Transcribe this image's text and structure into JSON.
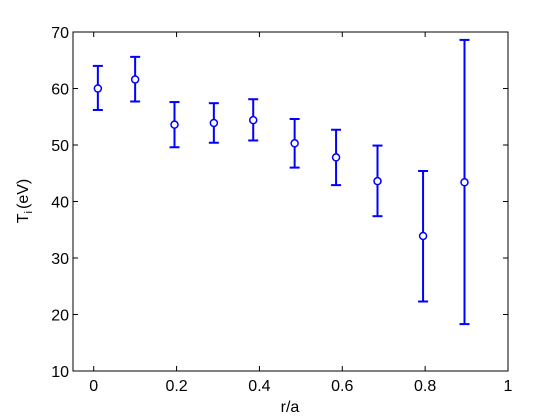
{
  "chart_data": {
    "type": "scatter",
    "title": "",
    "xlabel": "r/a",
    "ylabel": {
      "main": "T",
      "sub": "i",
      "unit": "(eV)"
    },
    "xlim": [
      -0.05,
      1
    ],
    "ylim": [
      10,
      70
    ],
    "xticks": [
      0,
      0.2,
      0.4,
      0.6,
      0.8,
      1
    ],
    "xtick_labels": [
      "0",
      "0.2",
      "0.4",
      "0.6",
      "0.8",
      "1"
    ],
    "yticks": [
      10,
      20,
      30,
      40,
      50,
      60,
      70
    ],
    "ytick_labels": [
      "10",
      "20",
      "30",
      "40",
      "50",
      "60",
      "70"
    ],
    "grid": false,
    "marker": "circle",
    "color": "#0000ff",
    "series": [
      {
        "points": [
          {
            "x": 0.01,
            "y": 60.0,
            "ylow": 56.2,
            "yhigh": 64.0
          },
          {
            "x": 0.1,
            "y": 61.6,
            "ylow": 57.7,
            "yhigh": 65.6
          },
          {
            "x": 0.195,
            "y": 53.6,
            "ylow": 49.6,
            "yhigh": 57.6
          },
          {
            "x": 0.29,
            "y": 53.9,
            "ylow": 50.4,
            "yhigh": 57.4
          },
          {
            "x": 0.385,
            "y": 54.4,
            "ylow": 50.8,
            "yhigh": 58.1
          },
          {
            "x": 0.485,
            "y": 50.3,
            "ylow": 46.0,
            "yhigh": 54.6
          },
          {
            "x": 0.585,
            "y": 47.8,
            "ylow": 42.9,
            "yhigh": 52.7
          },
          {
            "x": 0.685,
            "y": 43.6,
            "ylow": 37.4,
            "yhigh": 49.9
          },
          {
            "x": 0.795,
            "y": 33.9,
            "ylow": 22.3,
            "yhigh": 45.4
          },
          {
            "x": 0.895,
            "y": 43.4,
            "ylow": 18.3,
            "yhigh": 68.6
          }
        ]
      }
    ]
  }
}
